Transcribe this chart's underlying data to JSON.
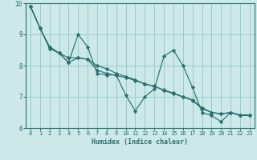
{
  "xlabel": "Humidex (Indice chaleur)",
  "bg_color": "#cce8e8",
  "grid_color": "#99cccc",
  "line_color": "#2a7070",
  "xlim": [
    -0.5,
    23.5
  ],
  "ylim": [
    6.0,
    10.0
  ],
  "xticks": [
    0,
    1,
    2,
    3,
    4,
    5,
    6,
    7,
    8,
    9,
    10,
    11,
    12,
    13,
    14,
    15,
    16,
    17,
    18,
    19,
    20,
    21,
    22,
    23
  ],
  "yticks": [
    6,
    7,
    8,
    9,
    10
  ],
  "series_zigzag": [
    9.9,
    9.2,
    8.6,
    8.4,
    8.1,
    9.0,
    8.6,
    7.75,
    7.7,
    7.7,
    7.05,
    6.55,
    7.0,
    7.25,
    8.3,
    8.5,
    8.0,
    7.3,
    6.5,
    6.4,
    6.2,
    6.5,
    6.4,
    6.4
  ],
  "series_trend1": [
    9.9,
    9.2,
    8.55,
    8.4,
    8.25,
    8.25,
    8.2,
    8.0,
    7.9,
    7.75,
    7.65,
    7.55,
    7.4,
    7.35,
    7.2,
    7.1,
    7.0,
    6.9,
    6.65,
    6.5,
    6.45,
    6.5,
    6.4,
    6.4
  ],
  "series_trend2": [
    9.9,
    9.2,
    8.6,
    8.4,
    8.1,
    8.25,
    8.2,
    7.85,
    7.75,
    7.68,
    7.62,
    7.52,
    7.42,
    7.33,
    7.22,
    7.12,
    7.0,
    6.88,
    6.62,
    6.5,
    6.45,
    6.5,
    6.42,
    6.42
  ]
}
